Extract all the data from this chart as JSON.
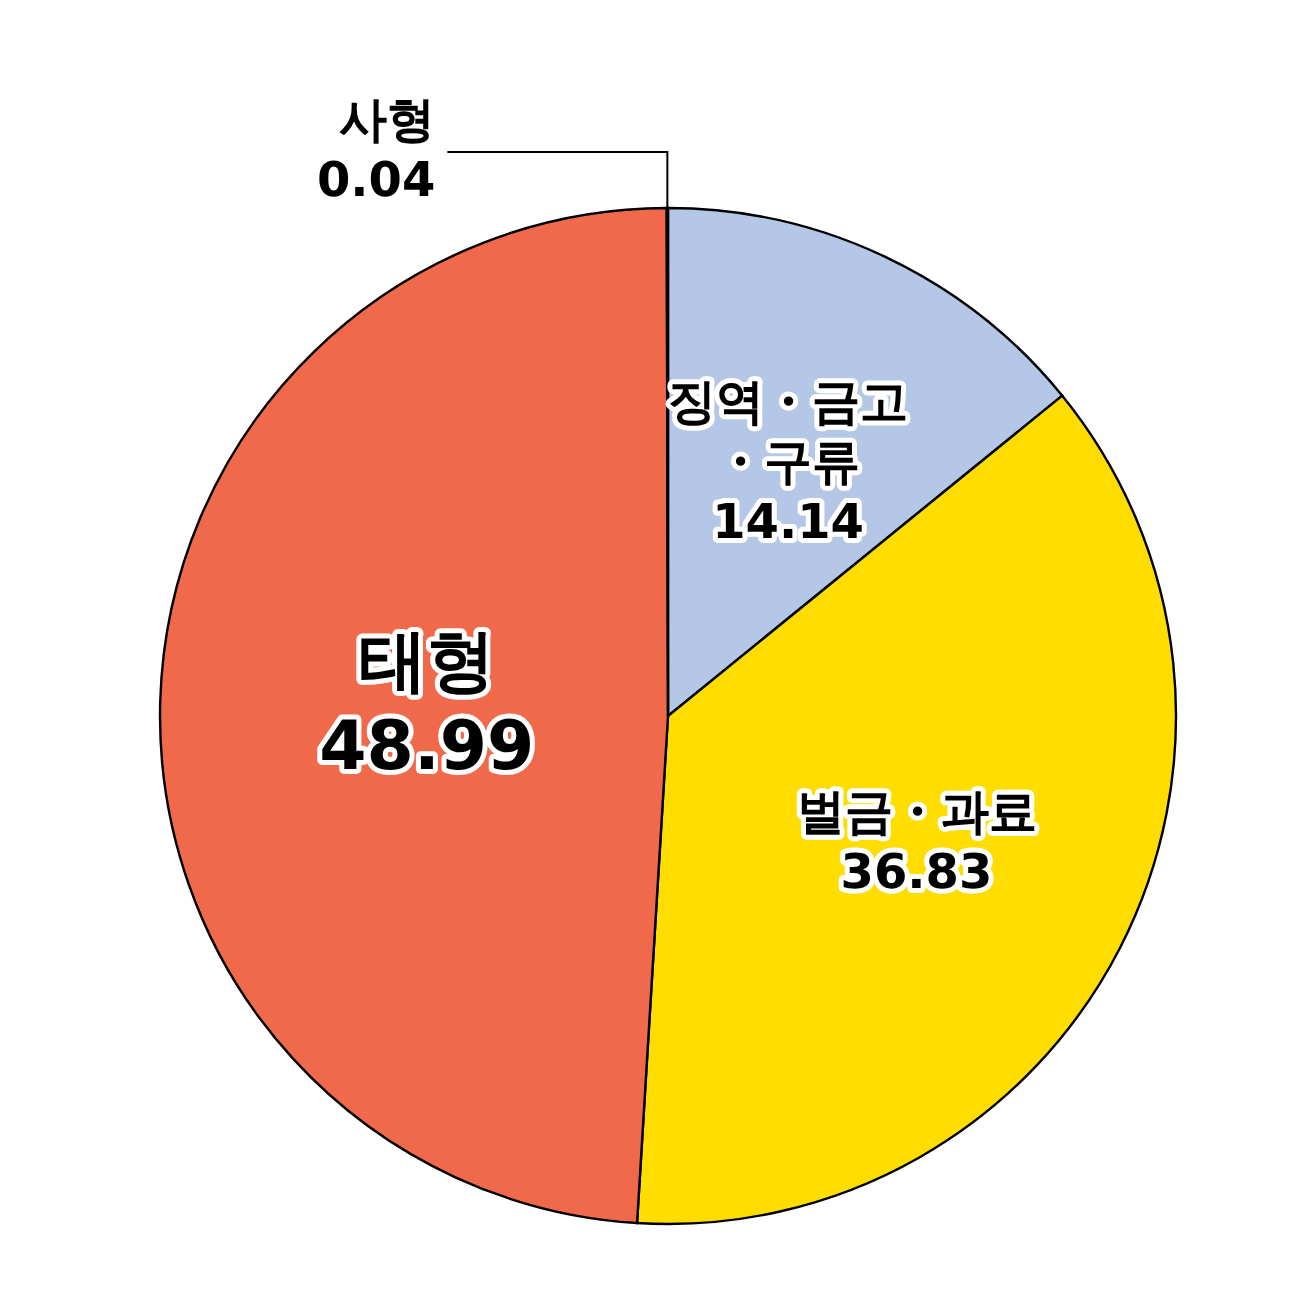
{
  "chart_data": {
    "type": "pie",
    "categories": [
      "징역・금고・구류",
      "벌금・과료",
      "태형",
      "사형"
    ],
    "values": [
      14.14,
      36.83,
      48.99,
      0.04
    ],
    "colors": [
      "#b4c7e7",
      "#ffdd00",
      "#f0694a",
      "#7fcbc4"
    ],
    "data_labels": true
  }
}
